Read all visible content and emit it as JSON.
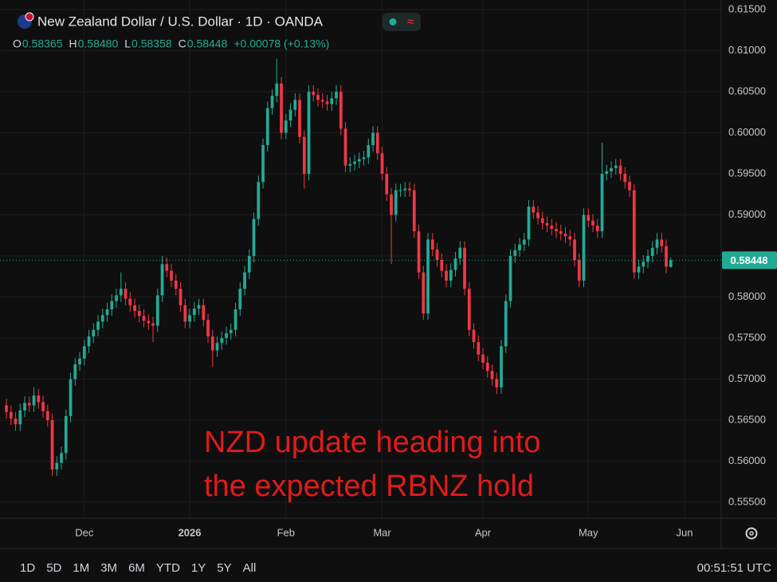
{
  "header": {
    "title": "New Zealand Dollar / U.S. Dollar · 1D · OANDA",
    "ohlc": [
      {
        "key": "O",
        "value": "0.58365"
      },
      {
        "key": "H",
        "value": "0.58480"
      },
      {
        "key": "L",
        "value": "0.58358"
      },
      {
        "key": "C",
        "value": "0.58448"
      }
    ],
    "change": "+0.00078 (+0.13%)"
  },
  "chart_data": {
    "type": "candlestick",
    "annotations": [
      "NZD update heading into",
      "the expected RBNZ hold"
    ],
    "up_color": "#22ab94",
    "down_color": "#f23645",
    "open": [
      0.5668,
      0.566,
      0.5652,
      0.5645,
      0.5662,
      0.5671,
      0.5668,
      0.568,
      0.5672,
      0.5661,
      0.565,
      0.559,
      0.5598,
      0.561,
      0.5655,
      0.57,
      0.5718,
      0.5725,
      0.574,
      0.5752,
      0.576,
      0.577,
      0.5778,
      0.5785,
      0.5795,
      0.5802,
      0.581,
      0.5798,
      0.579,
      0.5783,
      0.5777,
      0.5771,
      0.5768,
      0.5765,
      0.5802,
      0.584,
      0.5832,
      0.582,
      0.581,
      0.579,
      0.577,
      0.5778,
      0.5786,
      0.579,
      0.5772,
      0.5752,
      0.5735,
      0.5744,
      0.575,
      0.5756,
      0.576,
      0.5785,
      0.581,
      0.583,
      0.585,
      0.5895,
      0.594,
      0.5985,
      0.603,
      0.6045,
      0.606,
      0.6,
      0.6015,
      0.6028,
      0.604,
      0.5995,
      0.595,
      0.605,
      0.6046,
      0.604,
      0.6038,
      0.6035,
      0.6042,
      0.605,
      0.6005,
      0.596,
      0.5962,
      0.5965,
      0.5968,
      0.597,
      0.5985,
      0.6,
      0.5975,
      0.595,
      0.5925,
      0.59,
      0.593,
      0.593,
      0.5932,
      0.593,
      0.588,
      0.583,
      0.578,
      0.587,
      0.5858,
      0.5845,
      0.5832,
      0.582,
      0.5833,
      0.5847,
      0.586,
      0.581,
      0.576,
      0.5745,
      0.573,
      0.572,
      0.571,
      0.57,
      0.569,
      0.574,
      0.5795,
      0.585,
      0.5857,
      0.5864,
      0.587,
      0.591,
      0.5903,
      0.5896,
      0.589,
      0.5887,
      0.5883,
      0.588,
      0.5877,
      0.5874,
      0.587,
      0.5845,
      0.582,
      0.59,
      0.5893,
      0.5887,
      0.588,
      0.595,
      0.5953,
      0.5957,
      0.596,
      0.595,
      0.594,
      0.593,
      0.583,
      0.5837,
      0.5843,
      0.585,
      0.586,
      0.587,
      0.5862,
      0.58365
    ],
    "high": [
      0.5676,
      0.5668,
      0.566,
      0.567,
      0.5679,
      0.5679,
      0.569,
      0.5688,
      0.568,
      0.5669,
      0.5658,
      0.5606,
      0.5618,
      0.5663,
      0.5708,
      0.5726,
      0.5733,
      0.5748,
      0.576,
      0.5768,
      0.5778,
      0.5786,
      0.5793,
      0.5803,
      0.581,
      0.583,
      0.5818,
      0.5806,
      0.5798,
      0.5791,
      0.5785,
      0.5779,
      0.5776,
      0.581,
      0.585,
      0.5848,
      0.584,
      0.5828,
      0.5818,
      0.5798,
      0.5786,
      0.5794,
      0.5798,
      0.5798,
      0.578,
      0.576,
      0.5752,
      0.5758,
      0.5764,
      0.5768,
      0.5793,
      0.5818,
      0.5838,
      0.5858,
      0.5903,
      0.5948,
      0.5993,
      0.6038,
      0.6053,
      0.609,
      0.6068,
      0.6023,
      0.6036,
      0.6048,
      0.6048,
      0.6003,
      0.6058,
      0.6058,
      0.6054,
      0.6048,
      0.6046,
      0.605,
      0.6058,
      0.6058,
      0.6013,
      0.597,
      0.5973,
      0.5976,
      0.5978,
      0.5993,
      0.6008,
      0.6008,
      0.5983,
      0.5958,
      0.5933,
      0.5938,
      0.5938,
      0.594,
      0.594,
      0.5938,
      0.5888,
      0.5838,
      0.5878,
      0.5878,
      0.5866,
      0.5853,
      0.584,
      0.5841,
      0.5855,
      0.5868,
      0.5868,
      0.5818,
      0.5768,
      0.5753,
      0.5738,
      0.5728,
      0.5718,
      0.5708,
      0.5748,
      0.5803,
      0.5858,
      0.5865,
      0.5872,
      0.5878,
      0.5918,
      0.5918,
      0.5911,
      0.5904,
      0.5898,
      0.5895,
      0.5891,
      0.5888,
      0.5885,
      0.5882,
      0.5878,
      0.5853,
      0.5908,
      0.5908,
      0.5901,
      0.5895,
      0.5988,
      0.5961,
      0.5965,
      0.5968,
      0.5968,
      0.5958,
      0.5948,
      0.5938,
      0.5845,
      0.5851,
      0.5858,
      0.5868,
      0.5878,
      0.5878,
      0.587,
      0.5848
    ],
    "low": [
      0.5652,
      0.5644,
      0.5637,
      0.5637,
      0.5654,
      0.566,
      0.566,
      0.5664,
      0.5653,
      0.5642,
      0.5582,
      0.5582,
      0.559,
      0.5602,
      0.5647,
      0.5692,
      0.571,
      0.5717,
      0.5732,
      0.5744,
      0.5752,
      0.5762,
      0.577,
      0.5777,
      0.5787,
      0.5794,
      0.579,
      0.5782,
      0.5775,
      0.5769,
      0.5763,
      0.576,
      0.5745,
      0.5757,
      0.5794,
      0.5824,
      0.5812,
      0.5802,
      0.5782,
      0.5762,
      0.5762,
      0.577,
      0.5778,
      0.5764,
      0.5744,
      0.5715,
      0.5727,
      0.5736,
      0.5742,
      0.5748,
      0.5752,
      0.5777,
      0.5802,
      0.5822,
      0.5842,
      0.5887,
      0.5932,
      0.5977,
      0.6022,
      0.6037,
      0.5992,
      0.5992,
      0.6007,
      0.602,
      0.5987,
      0.5932,
      0.5942,
      0.6038,
      0.6032,
      0.603,
      0.6027,
      0.6027,
      0.6034,
      0.5997,
      0.5952,
      0.5952,
      0.5954,
      0.5957,
      0.596,
      0.5962,
      0.5977,
      0.5967,
      0.5942,
      0.5917,
      0.584,
      0.5892,
      0.5922,
      0.5922,
      0.5922,
      0.5872,
      0.5822,
      0.5772,
      0.5772,
      0.585,
      0.5837,
      0.5824,
      0.5812,
      0.5812,
      0.5825,
      0.5839,
      0.5802,
      0.5752,
      0.5737,
      0.5722,
      0.5712,
      0.5702,
      0.5692,
      0.5682,
      0.5682,
      0.5732,
      0.5787,
      0.5842,
      0.5849,
      0.5856,
      0.5862,
      0.5895,
      0.5888,
      0.5882,
      0.5879,
      0.5875,
      0.5872,
      0.5869,
      0.5866,
      0.5862,
      0.5837,
      0.5812,
      0.5812,
      0.5885,
      0.5879,
      0.5872,
      0.5872,
      0.5942,
      0.5945,
      0.5949,
      0.5942,
      0.5932,
      0.5922,
      0.5822,
      0.5822,
      0.5829,
      0.5835,
      0.5842,
      0.5852,
      0.5854,
      0.5829,
      0.58358
    ],
    "close": [
      0.566,
      0.5652,
      0.5645,
      0.5662,
      0.5671,
      0.5668,
      0.568,
      0.5672,
      0.5661,
      0.565,
      0.559,
      0.5598,
      0.561,
      0.5655,
      0.57,
      0.5718,
      0.5725,
      0.574,
      0.5752,
      0.576,
      0.577,
      0.5778,
      0.5785,
      0.5795,
      0.5802,
      0.581,
      0.5798,
      0.579,
      0.5783,
      0.5777,
      0.5771,
      0.5768,
      0.5765,
      0.5802,
      0.584,
      0.5832,
      0.582,
      0.581,
      0.579,
      0.577,
      0.5778,
      0.5786,
      0.579,
      0.5772,
      0.5752,
      0.5735,
      0.5744,
      0.575,
      0.5756,
      0.576,
      0.5785,
      0.581,
      0.583,
      0.585,
      0.5895,
      0.594,
      0.5985,
      0.603,
      0.6045,
      0.606,
      0.6,
      0.6015,
      0.6028,
      0.604,
      0.5995,
      0.595,
      0.605,
      0.6046,
      0.604,
      0.6038,
      0.6035,
      0.6042,
      0.605,
      0.6005,
      0.596,
      0.5962,
      0.5965,
      0.5968,
      0.597,
      0.5985,
      0.6,
      0.5975,
      0.595,
      0.5925,
      0.59,
      0.593,
      0.593,
      0.5932,
      0.593,
      0.588,
      0.583,
      0.578,
      0.587,
      0.5858,
      0.5845,
      0.5832,
      0.582,
      0.5833,
      0.5847,
      0.586,
      0.581,
      0.576,
      0.5745,
      0.573,
      0.572,
      0.571,
      0.57,
      0.569,
      0.574,
      0.5795,
      0.585,
      0.5857,
      0.5864,
      0.587,
      0.591,
      0.5903,
      0.5896,
      0.589,
      0.5887,
      0.5883,
      0.588,
      0.5877,
      0.5874,
      0.587,
      0.5845,
      0.582,
      0.59,
      0.5893,
      0.5887,
      0.588,
      0.595,
      0.5953,
      0.5957,
      0.596,
      0.595,
      0.594,
      0.593,
      0.583,
      0.5837,
      0.5843,
      0.585,
      0.586,
      0.587,
      0.5862,
      0.5837,
      0.58448
    ],
    "last_label": "0.58448",
    "xlim": [
      -1.4,
      156
    ],
    "xticks": [
      {
        "value": 17,
        "label": "Dec"
      },
      {
        "value": 40,
        "label": "2026"
      },
      {
        "value": 61,
        "label": "Feb"
      },
      {
        "value": 82,
        "label": "Mar"
      },
      {
        "value": 104,
        "label": "Apr"
      },
      {
        "value": 127,
        "label": "May"
      },
      {
        "value": 148,
        "label": "Jun"
      }
    ],
    "ylim": [
      0.55306,
      0.61617
    ],
    "yticks": [
      {
        "value": 0.555,
        "label": "0.55500"
      },
      {
        "value": 0.56,
        "label": "0.56000"
      },
      {
        "value": 0.565,
        "label": "0.56500"
      },
      {
        "value": 0.57,
        "label": "0.57000"
      },
      {
        "value": 0.575,
        "label": "0.57500"
      },
      {
        "value": 0.58,
        "label": "0.58000"
      },
      {
        "value": 0.585,
        "label": "0.58500"
      },
      {
        "value": 0.59,
        "label": "0.59000"
      },
      {
        "value": 0.595,
        "label": "0.59500"
      },
      {
        "value": 0.6,
        "label": "0.60000"
      },
      {
        "value": 0.605,
        "label": "0.60500"
      },
      {
        "value": 0.61,
        "label": "0.61000"
      },
      {
        "value": 0.615,
        "label": "0.61500"
      }
    ],
    "grid": true
  },
  "toolbar": [
    "1D",
    "5D",
    "1M",
    "3M",
    "6M",
    "YTD",
    "1Y",
    "5Y",
    "All"
  ],
  "clock": "00:51:51 UTC"
}
